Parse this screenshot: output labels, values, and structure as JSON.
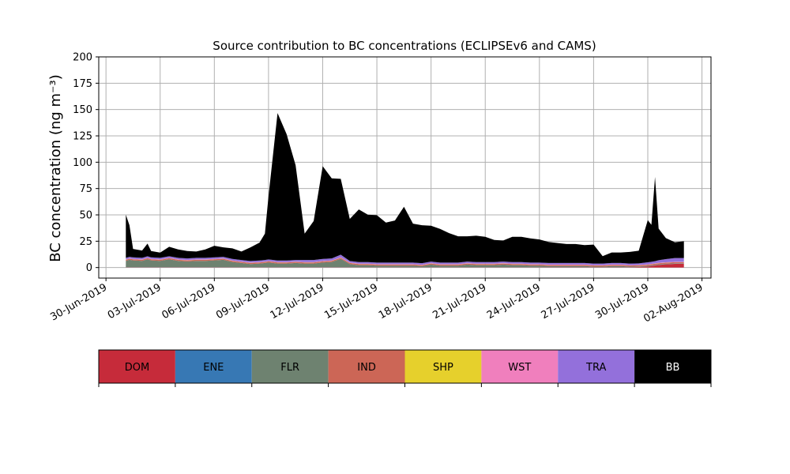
{
  "chart_data": {
    "type": "area",
    "title": "Source contribution to BC concentrations (ECLIPSEv6 and CAMS)",
    "ylabel": "BC concentration (ng m⁻³)",
    "xlabel": "",
    "ylim": [
      -10,
      200
    ],
    "yticks": [
      0,
      25,
      50,
      75,
      100,
      125,
      150,
      175,
      200
    ],
    "xlim_days": [
      -0.4,
      33.5
    ],
    "x_ticks": [
      {
        "day": 0,
        "label": "30-Jun-2019"
      },
      {
        "day": 3,
        "label": "03-Jul-2019"
      },
      {
        "day": 6,
        "label": "06-Jul-2019"
      },
      {
        "day": 9,
        "label": "09-Jul-2019"
      },
      {
        "day": 12,
        "label": "12-Jul-2019"
      },
      {
        "day": 15,
        "label": "15-Jul-2019"
      },
      {
        "day": 18,
        "label": "18-Jul-2019"
      },
      {
        "day": 21,
        "label": "21-Jul-2019"
      },
      {
        "day": 24,
        "label": "24-Jul-2019"
      },
      {
        "day": 27,
        "label": "27-Jul-2019"
      },
      {
        "day": 30,
        "label": "30-Jul-2019"
      },
      {
        "day": 33,
        "label": "02-Aug-2019"
      }
    ],
    "x_days": [
      1.1,
      1.3,
      1.5,
      2.0,
      2.3,
      2.5,
      3.0,
      3.5,
      4.0,
      4.5,
      5.0,
      5.5,
      6.0,
      6.5,
      7.0,
      7.5,
      8.0,
      8.5,
      8.8,
      9.0,
      9.5,
      10.0,
      10.5,
      11.0,
      11.5,
      12.0,
      12.5,
      13.0,
      13.5,
      14.0,
      14.5,
      15.0,
      15.5,
      16.0,
      16.5,
      17.0,
      17.5,
      18.0,
      18.5,
      19.0,
      19.5,
      20.0,
      20.5,
      21.0,
      21.5,
      22.0,
      22.5,
      23.0,
      23.5,
      24.0,
      24.5,
      25.0,
      25.5,
      26.0,
      26.5,
      27.0,
      27.5,
      28.0,
      28.5,
      29.0,
      29.5,
      30.0,
      30.2,
      30.4,
      30.6,
      31.0,
      31.5,
      32.0
    ],
    "series": [
      {
        "name": "DOM",
        "color": "#c62b3a",
        "values": [
          0.2,
          0.2,
          0.2,
          0.2,
          0.2,
          0.2,
          0.2,
          0.2,
          0.2,
          0.2,
          0.2,
          0.2,
          0.2,
          0.2,
          0.2,
          0.2,
          0.2,
          0.2,
          0.2,
          0.2,
          0.2,
          0.2,
          0.2,
          0.2,
          0.2,
          0.2,
          0.2,
          0.2,
          0.2,
          0.2,
          0.2,
          0.2,
          0.2,
          0.2,
          0.2,
          0.2,
          0.2,
          0.2,
          0.2,
          0.2,
          0.2,
          0.2,
          0.2,
          0.2,
          0.2,
          0.2,
          0.2,
          0.2,
          0.2,
          0.2,
          0.3,
          0.3,
          0.3,
          0.3,
          0.3,
          0.3,
          0.3,
          0.3,
          0.3,
          0.3,
          0.5,
          1.0,
          1.5,
          2.0,
          2.5,
          3.0,
          3.5,
          3.5
        ]
      },
      {
        "name": "ENE",
        "color": "#3778b4",
        "values": [
          0.1,
          0.1,
          0.1,
          0.1,
          0.1,
          0.1,
          0.1,
          0.1,
          0.1,
          0.1,
          0.1,
          0.1,
          0.1,
          0.1,
          0.1,
          0.1,
          0.1,
          0.1,
          0.1,
          0.1,
          0.1,
          0.1,
          0.1,
          0.1,
          0.1,
          0.1,
          0.1,
          0.1,
          0.1,
          0.1,
          0.1,
          0.1,
          0.1,
          0.1,
          0.1,
          0.1,
          0.1,
          0.1,
          0.1,
          0.1,
          0.1,
          0.1,
          0.1,
          0.1,
          0.1,
          0.1,
          0.1,
          0.1,
          0.1,
          0.1,
          0.1,
          0.1,
          0.1,
          0.1,
          0.1,
          0.1,
          0.1,
          0.1,
          0.1,
          0.1,
          0.1,
          0.1,
          0.1,
          0.1,
          0.1,
          0.1,
          0.1,
          0.1
        ]
      },
      {
        "name": "FLR",
        "color": "#6e8270",
        "values": [
          6,
          7,
          6.5,
          6,
          7.5,
          6.5,
          6,
          7.5,
          6,
          5.5,
          6,
          6,
          6.5,
          7,
          5,
          4,
          3,
          3.5,
          4,
          4.5,
          3.5,
          3.5,
          4,
          3.5,
          3.5,
          4.5,
          5,
          8,
          3,
          2,
          2,
          1.5,
          1.5,
          1.5,
          1.5,
          1.5,
          1,
          2.5,
          1.5,
          1.5,
          1.5,
          2.5,
          2,
          2,
          2,
          2.5,
          2,
          2,
          1.5,
          1.5,
          1,
          1,
          1,
          1,
          1,
          0.5,
          0.5,
          1,
          1,
          0.5,
          0.5,
          0.5,
          0.5,
          0.5,
          0.5,
          0.5,
          0.5,
          0.5
        ]
      },
      {
        "name": "IND",
        "color": "#cc6656",
        "values": [
          1,
          1,
          1,
          1,
          1,
          1,
          1,
          1,
          1,
          1,
          1,
          1,
          1,
          1,
          1,
          1,
          1,
          1,
          1,
          1,
          1,
          1,
          1,
          1,
          1,
          1,
          1,
          1,
          1,
          1,
          1,
          1,
          1,
          1,
          1,
          1,
          1,
          1,
          1,
          1,
          1,
          1,
          1,
          1,
          1,
          1,
          1,
          1,
          1,
          1,
          1,
          1,
          1,
          1,
          1,
          1,
          1,
          1,
          1,
          1,
          1,
          1,
          1,
          1,
          1,
          1,
          1,
          1
        ]
      },
      {
        "name": "SHP",
        "color": "#e6d02c",
        "values": [
          0.1,
          0.1,
          0.1,
          0.1,
          0.1,
          0.1,
          0.1,
          0.1,
          0.1,
          0.1,
          0.1,
          0.1,
          0.1,
          0.1,
          0.1,
          0.1,
          0.1,
          0.1,
          0.1,
          0.1,
          0.1,
          0.1,
          0.1,
          0.1,
          0.1,
          0.1,
          0.1,
          0.1,
          0.1,
          0.1,
          0.1,
          0.1,
          0.1,
          0.1,
          0.1,
          0.1,
          0.1,
          0.1,
          0.1,
          0.1,
          0.1,
          0.1,
          0.1,
          0.1,
          0.1,
          0.1,
          0.1,
          0.1,
          0.1,
          0.1,
          0.1,
          0.1,
          0.1,
          0.1,
          0.1,
          0.1,
          0.1,
          0.1,
          0.1,
          0.1,
          0.1,
          0.1,
          0.1,
          0.1,
          0.1,
          0.1,
          0.1,
          0.1
        ]
      },
      {
        "name": "WST",
        "color": "#f07fbd",
        "values": [
          0.3,
          0.3,
          0.3,
          0.3,
          0.3,
          0.3,
          0.3,
          0.3,
          0.3,
          0.3,
          0.3,
          0.3,
          0.3,
          0.3,
          0.3,
          0.3,
          0.3,
          0.3,
          0.3,
          0.3,
          0.3,
          0.3,
          0.3,
          0.3,
          0.3,
          0.3,
          0.3,
          0.3,
          0.3,
          0.3,
          0.3,
          0.3,
          0.3,
          0.3,
          0.3,
          0.3,
          0.3,
          0.3,
          0.3,
          0.3,
          0.3,
          0.3,
          0.3,
          0.3,
          0.3,
          0.3,
          0.3,
          0.3,
          0.3,
          0.3,
          0.3,
          0.3,
          0.3,
          0.3,
          0.3,
          0.3,
          0.3,
          0.3,
          0.3,
          0.3,
          0.3,
          0.3,
          0.3,
          0.3,
          0.3,
          0.3,
          0.3,
          0.3
        ]
      },
      {
        "name": "TRA",
        "color": "#9370db",
        "values": [
          1.5,
          1.5,
          1.5,
          1.5,
          1.5,
          1.5,
          1.5,
          1.5,
          1.5,
          1.5,
          1.5,
          1.5,
          1.5,
          1.5,
          1.5,
          1.5,
          1.5,
          1.5,
          1.5,
          1.5,
          1.5,
          1.5,
          1.5,
          2,
          2,
          2,
          2,
          2.5,
          1.5,
          1.5,
          1.5,
          1.5,
          1.5,
          1.5,
          1.5,
          1.5,
          1.5,
          1.5,
          1.5,
          1.5,
          1.5,
          1.5,
          1.5,
          1.5,
          1.5,
          1.5,
          1.5,
          1.5,
          1.5,
          1.5,
          1.5,
          1.5,
          1.5,
          1.5,
          1.5,
          1.5,
          1.5,
          1.5,
          1.5,
          1.5,
          1.5,
          2,
          2,
          2,
          2.5,
          3,
          3.5,
          3.5
        ]
      },
      {
        "name": "BB",
        "color": "#000000",
        "values": [
          41,
          30,
          8,
          7,
          12,
          6,
          5,
          9,
          8,
          7,
          6,
          8,
          11,
          9,
          10,
          8,
          13,
          17,
          25,
          60,
          140,
          120,
          90,
          25,
          37,
          88,
          76,
          72,
          40,
          50,
          45,
          45,
          38,
          40,
          53,
          37,
          36,
          34,
          32,
          28,
          25,
          24,
          25,
          24,
          21,
          20,
          24,
          24,
          23,
          22,
          20,
          19,
          18,
          18,
          17,
          18,
          7,
          10,
          10,
          11,
          12,
          40,
          35,
          80,
          30,
          20,
          15,
          16
        ]
      }
    ]
  }
}
